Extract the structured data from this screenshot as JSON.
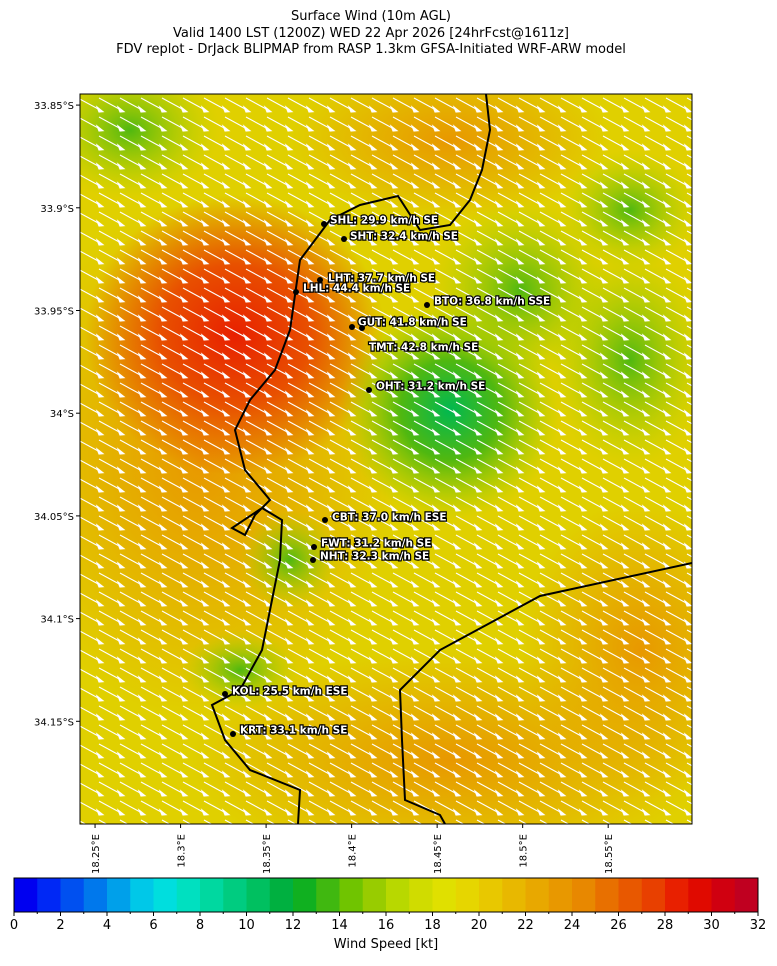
{
  "header": {
    "title": "Surface Wind (10m AGL)",
    "subtitle": "Valid 1400 LST (1200Z) WED 22 Apr 2026 [24hrFcst@1611z]",
    "source": "FDV replot - DrJack BLIPMAP from RASP 1.3km GFSA-Initiated WRF-ARW model"
  },
  "map": {
    "latlim": [
      -33.8446,
      -34.2
    ],
    "lonlim": [
      18.2412,
      18.599
    ],
    "latticks": [
      {
        "value": -33.85,
        "label": "33.85°S"
      },
      {
        "value": -33.9,
        "label": "33.9°S"
      },
      {
        "value": -33.95,
        "label": "33.95°S"
      },
      {
        "value": -34.0,
        "label": "34°S"
      },
      {
        "value": -34.05,
        "label": "34.05°S"
      },
      {
        "value": -34.1,
        "label": "34.1°S"
      },
      {
        "value": -34.15,
        "label": "34.15°S"
      }
    ],
    "lonticks": [
      {
        "value": 18.25,
        "label": "18.25°E"
      },
      {
        "value": 18.3,
        "label": "18.3°E"
      },
      {
        "value": 18.35,
        "label": "18.35°E"
      },
      {
        "value": 18.4,
        "label": "18.4°E"
      },
      {
        "value": 18.45,
        "label": "18.45°E"
      },
      {
        "value": 18.5,
        "label": "18.5°E"
      },
      {
        "value": 18.55,
        "label": "18.55°E"
      }
    ],
    "stations": [
      "SHL: 29.9 km/h SE",
      "SHT: 32.4 km/h SE",
      "LHT: 37.7 km/h SE",
      "LHL: 44.4 km/h SE",
      "BTO: 36.8 km/h SSE",
      "GUT: 41.8 km/h SE",
      "TMT: 42.8 km/h SE",
      "OHT: 31.2 km/h SE",
      "CBT: 37.0 km/h ESE",
      "FWT: 31.2 km/h SE",
      "NHT: 32.3 km/h SE",
      "KOL: 25.5 km/h ESE",
      "KRT: 33.1 km/h SE"
    ]
  },
  "colorbar": {
    "label": "Wind Speed [kt]",
    "lim": [
      0,
      32
    ],
    "ticks": [
      0,
      2,
      4,
      6,
      8,
      10,
      12,
      14,
      16,
      18,
      20,
      22,
      24,
      26,
      28,
      30,
      32
    ],
    "colors": [
      "#0000f0",
      "#0028f5",
      "#0050f0",
      "#0078ec",
      "#00a0ea",
      "#00c8e8",
      "#00dede",
      "#00e0c0",
      "#00d8a0",
      "#00cc80",
      "#00c060",
      "#00b040",
      "#10b020",
      "#40b810",
      "#70c400",
      "#98cc00",
      "#b8d800",
      "#d0dc00",
      "#e0e000",
      "#e6d600",
      "#e8c800",
      "#e8b800",
      "#e8a800",
      "#e89800",
      "#e88800",
      "#e87000",
      "#e85800",
      "#e84000",
      "#e82000",
      "#e00a00",
      "#d00010",
      "#c00020"
    ]
  }
}
